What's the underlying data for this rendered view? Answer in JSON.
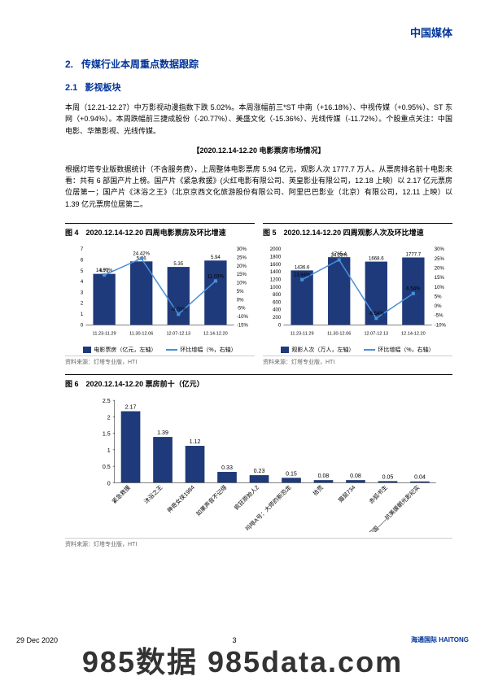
{
  "header": {
    "title": "中国媒体"
  },
  "section": {
    "number": "2.",
    "title": "传媒行业本周重点数据跟踪"
  },
  "subsection": {
    "number": "2.1",
    "title": "影视板块"
  },
  "paragraph1": "本周（12.21-12.27）中万影视动漫指数下跌 5.02%。本周涨幅前三*ST 中南（+16.18%）、中视传媒（+0.95%）、ST 东网（+0.94%）。本周跌幅前三捷成股份（-20.77%）、美盛文化（-15.36%）、光线传媒（-11.72%）。个股重点关注：中国电影、华策影视、光线传媒。",
  "bold_header": "【2020.12.14-12.20 电影票房市场情况】",
  "paragraph2": "根据灯塔专业版数据统计（不含服务费），上周整体电影票房 5.94 亿元，观影人次 1777.7 万人。从票房排名前十电影来看：共有 6 部国产片上榜。国产片《紧急救援》(火红电影有限公司、英皇影业有限公司，12.18 上映）以 2.17 亿元票房位居第一；国产片《沐浴之王》（北京京西文化旅游股份有限公司、阿里巴巴影业（北京）有限公司，12.11 上映）以 1.39 亿元票房位居第二。",
  "chart4": {
    "title": "图 4　2020.12.14-12.20 四周电影票房及环比增速",
    "type": "bar+line",
    "categories": [
      "11.23-11.29",
      "11.30-12.06",
      "12.07-12.13",
      "12.14-12.20"
    ],
    "bar_values": [
      4.71,
      5.86,
      5.35,
      5.94
    ],
    "bar_labels": [
      "4.71",
      "5.86",
      "5.35",
      "5.94"
    ],
    "line_values": [
      14.6,
      24.42,
      -8.7,
      11.03
    ],
    "line_labels": [
      "14.60%",
      "24.42%",
      "-8.70%",
      "11.03%"
    ],
    "bar_color": "#1f3a7a",
    "line_color": "#4a90d9",
    "y1_max": 7,
    "y1_ticks": [
      0,
      1,
      2,
      3,
      4,
      5,
      6,
      7
    ],
    "y2_min": -15,
    "y2_max": 30,
    "y2_ticks": [
      "-15%",
      "-10%",
      "-5%",
      "0%",
      "5%",
      "10%",
      "15%",
      "20%",
      "25%",
      "30%"
    ],
    "legend_bar": "电影票房（亿元，左轴）",
    "legend_line": "环比增幅（%，右轴）",
    "source": "资料来源：灯塔专业版，HTI"
  },
  "chart5": {
    "title": "图 5　2020.12.14-12.20 四周观影人次及环比增速",
    "type": "bar+line",
    "categories": [
      "11.23-11.29",
      "11.30-12.06",
      "12.07-12.13",
      "12.14-12.20"
    ],
    "bar_values": [
      1436.6,
      1785.4,
      1668.6,
      1777.7
    ],
    "bar_labels": [
      "1436.6",
      "1785.4",
      "1668.6",
      "1777.7"
    ],
    "line_values": [
      13.84,
      24.28,
      -6.54,
      6.54
    ],
    "line_labels": [
      "13.84%",
      "24.28%",
      "-6.54%",
      "6.54%"
    ],
    "bar_color": "#1f3a7a",
    "line_color": "#4a90d9",
    "y1_max": 2000,
    "y1_ticks": [
      0,
      200,
      400,
      600,
      800,
      1000,
      1200,
      1400,
      1600,
      1800,
      2000
    ],
    "y2_min": -10,
    "y2_max": 30,
    "y2_ticks": [
      "-10%",
      "-5%",
      "0%",
      "5%",
      "10%",
      "15%",
      "20%",
      "25%",
      "30%"
    ],
    "legend_bar": "观影人次（万人，左轴）",
    "legend_line": "环比增幅（%，右轴）",
    "source": "资料来源：灯塔专业版，HTI"
  },
  "chart6": {
    "title": "图 6　2020.12.14-12.20 票房前十（亿元）",
    "type": "bar",
    "categories": [
      "紧急救援",
      "沐浴之王",
      "神奇女侠1984",
      "如果声音不记得",
      "疯狂原始人2",
      "吗啡A号：大师的新恐龙",
      "拾荒",
      "猫鼠734",
      "赤狐书生",
      "保家卫国——抗美援朝光影纪实"
    ],
    "values": [
      2.17,
      1.39,
      1.12,
      0.33,
      0.23,
      0.15,
      0.08,
      0.08,
      0.05,
      0.04
    ],
    "bar_color": "#1f3a7a",
    "y_max": 2.5,
    "y_ticks": [
      0,
      0.5,
      1.0,
      1.5,
      2.0,
      2.5
    ],
    "source": "资料来源：灯塔专业版，HTI"
  },
  "footer": {
    "date": "29 Dec 2020",
    "page": "3",
    "logo": "海通国际 HAITONG"
  },
  "watermark": "985数据 985data.com"
}
